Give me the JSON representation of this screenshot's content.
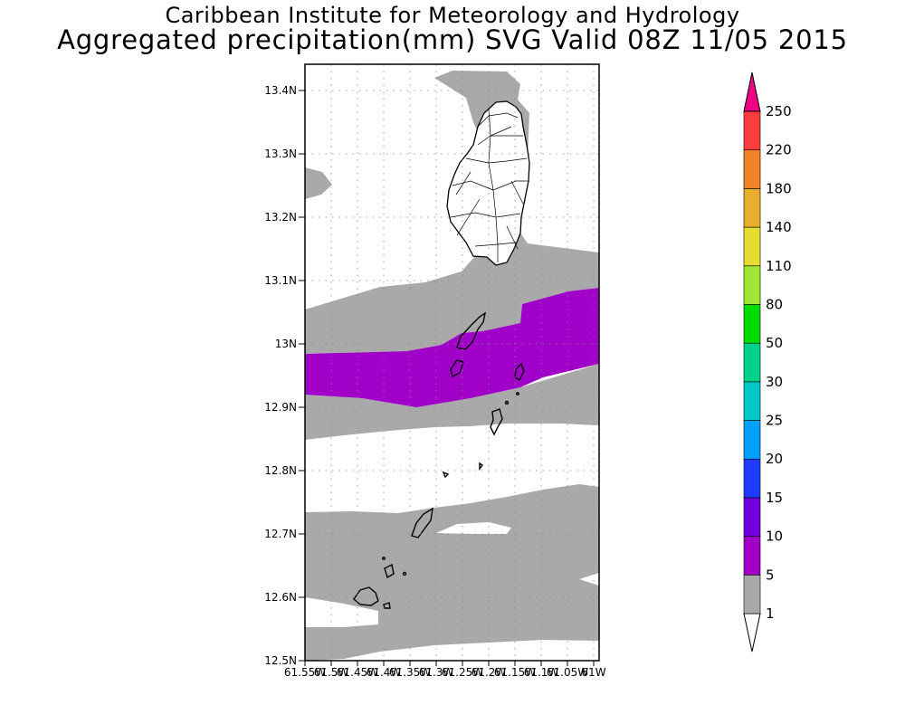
{
  "header": {
    "institute": "Caribbean Institute for Meteorology and Hydrology",
    "product": "Aggregated precipitation(mm) SVG Valid 08Z 11/05 2015"
  },
  "map": {
    "region": "St. Vincent and the Grenadines",
    "lat_range": [
      12.5,
      13.44
    ],
    "lon_range": [
      -61.555,
      -61.0
    ],
    "lat_ticks": [
      "12.5N",
      "12.6N",
      "12.7N",
      "12.8N",
      "12.9N",
      "13N",
      "13.1N",
      "13.2N",
      "13.3N",
      "13.4N"
    ],
    "lon_ticks": [
      "61.55W",
      "61.5W",
      "61.45W",
      "61.4W",
      "61.35W",
      "61.3W",
      "61.25W",
      "61.2W",
      "61.15W",
      "61.1W",
      "61.05W",
      "61W"
    ],
    "gridlines": "dotted",
    "shaded_classes_present": [
      "1-5",
      "5-10"
    ]
  },
  "colorbar": {
    "labels": [
      "1",
      "5",
      "10",
      "15",
      "20",
      "25",
      "30",
      "50",
      "80",
      "110",
      "140",
      "180",
      "220",
      "250"
    ],
    "colors": [
      "#ffffff",
      "#a9a9a9",
      "#a000c8",
      "#7200dc",
      "#1e3cff",
      "#00a0ff",
      "#00c8c8",
      "#00d28c",
      "#00dc00",
      "#a0e632",
      "#e6dc32",
      "#e6af2d",
      "#f08228",
      "#fa3c3c",
      "#f00082"
    ]
  }
}
